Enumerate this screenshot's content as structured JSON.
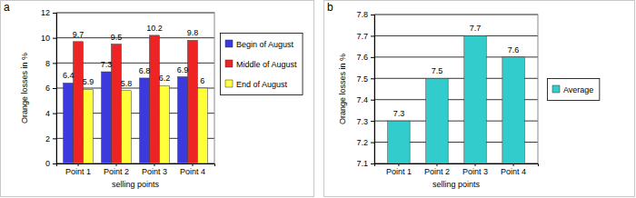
{
  "chart_data": [
    {
      "type": "bar",
      "annotations": [
        "a"
      ],
      "y_label": "Orange losses in %",
      "x_label": "selling points",
      "categories": [
        "Point 1",
        "Point 2",
        "Point 3",
        "Point 4"
      ],
      "series": [
        {
          "name": "Begin of August",
          "color": "#3a3adf",
          "values": [
            6.4,
            7.3,
            6.8,
            6.9
          ]
        },
        {
          "name": "Middle of August",
          "color": "#ee2424",
          "values": [
            9.7,
            9.5,
            10.2,
            9.8
          ]
        },
        {
          "name": "End of August",
          "color": "#ffff3a",
          "values": [
            5.9,
            5.8,
            6.2,
            6
          ]
        }
      ],
      "ylim": [
        0,
        12
      ],
      "yticks": [
        0,
        2,
        4,
        6,
        8,
        10,
        12
      ],
      "grid": true,
      "legend": "right",
      "data_labels": true
    },
    {
      "type": "bar",
      "annotations": [
        "b"
      ],
      "y_label": "Orange losses in %",
      "x_label": "selling points",
      "categories": [
        "Point 1",
        "Point 2",
        "Point 3",
        "Point 4"
      ],
      "series": [
        {
          "name": "Average",
          "color": "#33cccc",
          "values": [
            7.3,
            7.5,
            7.7,
            7.6
          ]
        }
      ],
      "ylim": [
        7.1,
        7.8
      ],
      "yticks": [
        7.1,
        7.2,
        7.3,
        7.4,
        7.5,
        7.6,
        7.7,
        7.8
      ],
      "grid": true,
      "legend": "right",
      "data_labels": true
    }
  ]
}
